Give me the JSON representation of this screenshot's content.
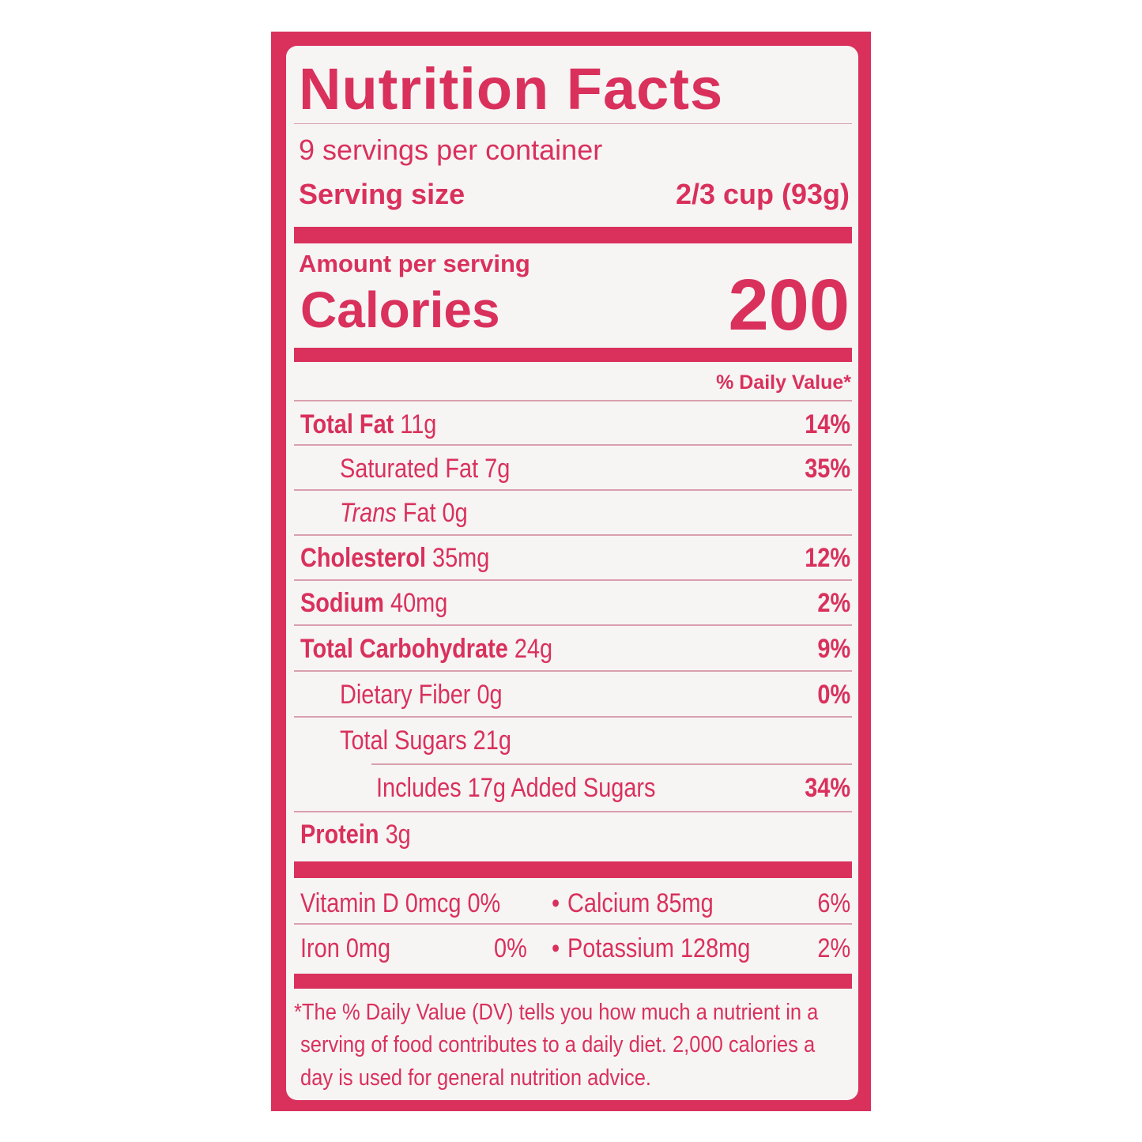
{
  "title": "Nutrition Facts",
  "servings_per_container": "9 servings per container",
  "serving_size_label": "Serving size",
  "serving_size_value": "2/3 cup (93g)",
  "amount_per_serving": "Amount per serving",
  "calories_label": "Calories",
  "calories_value": "200",
  "daily_value_header": "% Daily Value*",
  "nutrients": [
    {
      "name": "Total Fat",
      "amount": "11g",
      "dv": "14%"
    },
    {
      "name": "Saturated Fat",
      "amount": "7g",
      "dv": "35%"
    },
    {
      "name_italic": "Trans",
      "name": "Fat",
      "amount": "0g",
      "dv": ""
    },
    {
      "name": "Cholesterol",
      "amount": "35mg",
      "dv": "12%"
    },
    {
      "name": "Sodium",
      "amount": "40mg",
      "dv": "2%"
    },
    {
      "name": "Total Carbohydrate",
      "amount": "24g",
      "dv": "9%"
    },
    {
      "name": "Dietary Fiber",
      "amount": "0g",
      "dv": "0%"
    },
    {
      "name": "Total Sugars",
      "amount": "21g",
      "dv": ""
    },
    {
      "name": "Includes 17g Added Sugars",
      "amount": "",
      "dv": "34%"
    },
    {
      "name": "Protein",
      "amount": "3g",
      "dv": ""
    }
  ],
  "vitamins": [
    {
      "left": "Vitamin D 0mcg 0%",
      "bullet": "•",
      "right": "Calcium 85mg",
      "right_dv": "6%"
    },
    {
      "left": "Iron 0mg",
      "left_dv": "0%",
      "bullet": "•",
      "right": "Potassium 128mg",
      "right_dv": "2%"
    }
  ],
  "footnote": [
    "*The % Daily Value (DV) tells you how much a nutrient in a",
    "serving of food contributes to a daily diet. 2,000 calories a",
    "day is used for general nutrition advice."
  ],
  "colors": {
    "label_red": "#d9315c",
    "background": "#f7f4f4"
  }
}
